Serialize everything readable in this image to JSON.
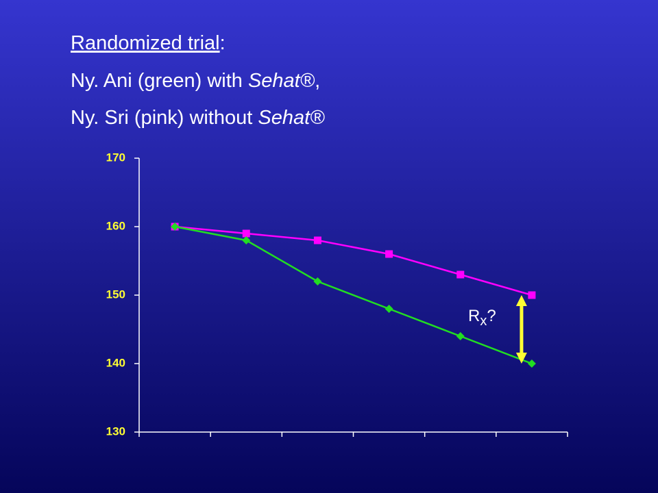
{
  "chart_data": {
    "type": "line",
    "title_lines": [
      [
        "Randomized trial",
        ":"
      ],
      [
        "Ny. Ani (green) with ",
        "Sehat®",
        ","
      ],
      [
        "Ny. Sri (pink) without ",
        "Sehat®"
      ]
    ],
    "categories": [
      null,
      null,
      null,
      null,
      null,
      null
    ],
    "series": [
      {
        "color": "#ff00ff",
        "marker": "square",
        "values": [
          160,
          159,
          158,
          156,
          153,
          150
        ]
      },
      {
        "color": "#22dd22",
        "marker": "diamond",
        "values": [
          160,
          158,
          152,
          148,
          144,
          140
        ]
      }
    ],
    "ylim": [
      130,
      170
    ],
    "yticks": [
      130,
      140,
      150,
      160,
      170
    ],
    "annotation": {
      "parts": [
        "R",
        "x",
        "?"
      ],
      "arrow_color": "#ffff33",
      "from": 150,
      "to": 140
    }
  }
}
